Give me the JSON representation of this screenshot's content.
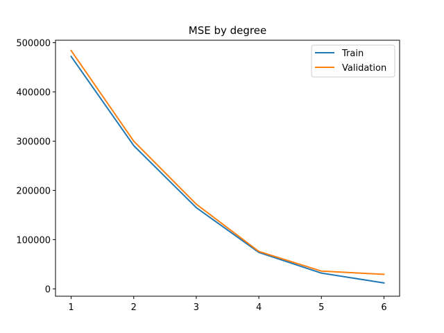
{
  "chart_data": {
    "type": "line",
    "title": "MSE by degree",
    "xlabel": "",
    "ylabel": "",
    "x": [
      1,
      2,
      3,
      4,
      5,
      6
    ],
    "xlim": [
      0.75,
      6.25
    ],
    "ylim": [
      -15000,
      505000
    ],
    "xticks": [
      1,
      2,
      3,
      4,
      5,
      6
    ],
    "yticks": [
      0,
      100000,
      200000,
      300000,
      400000,
      500000
    ],
    "grid": false,
    "legend_position": "top-right",
    "series": [
      {
        "name": "Train",
        "color": "#1f77b4",
        "values": [
          472000,
          291000,
          165000,
          74000,
          32000,
          12000
        ]
      },
      {
        "name": "Validation",
        "color": "#ff7f0e",
        "values": [
          484000,
          300000,
          172000,
          76000,
          36000,
          29500
        ]
      }
    ]
  }
}
